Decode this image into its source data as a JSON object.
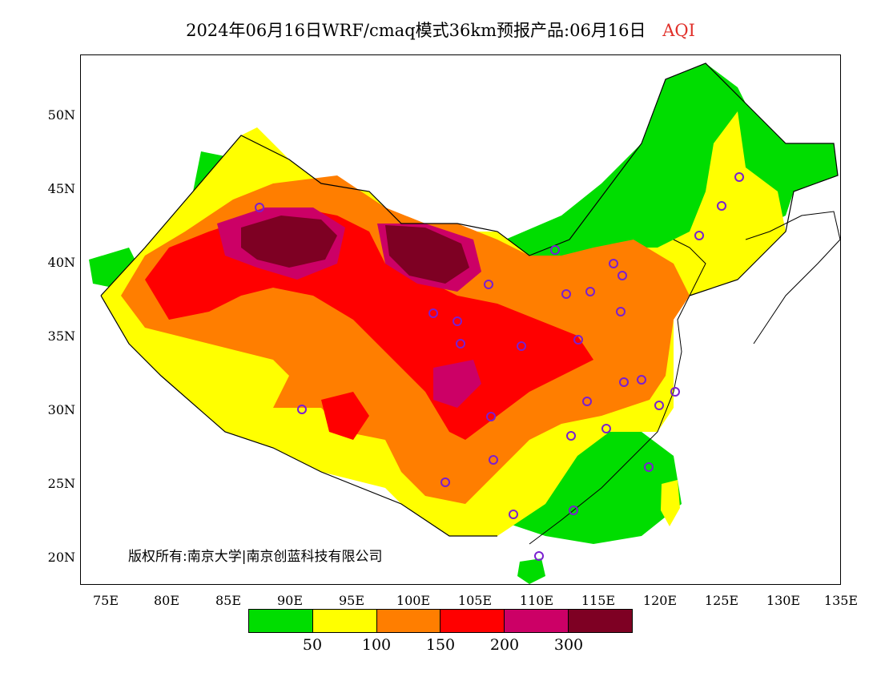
{
  "title": {
    "main": "2024年06月16日WRF/cmaq模式36km预报产品:06月16日",
    "variable": "AQI"
  },
  "lat_labels": [
    "50N",
    "45N",
    "40N",
    "35N",
    "30N",
    "25N",
    "20N"
  ],
  "lon_labels": [
    "75E",
    "80E",
    "85E",
    "90E",
    "95E",
    "100E",
    "105E",
    "110E",
    "115E",
    "120E",
    "125E",
    "130E",
    "135E"
  ],
  "copyright": "版权所有:南京大学|南京创蓝科技有限公司",
  "legend": {
    "colors": [
      "#00dd00",
      "#ffff00",
      "#ff7e00",
      "#ff0000",
      "#cc0066",
      "#7e0023"
    ],
    "labels": [
      "50",
      "100",
      "150",
      "200",
      "300"
    ]
  }
}
